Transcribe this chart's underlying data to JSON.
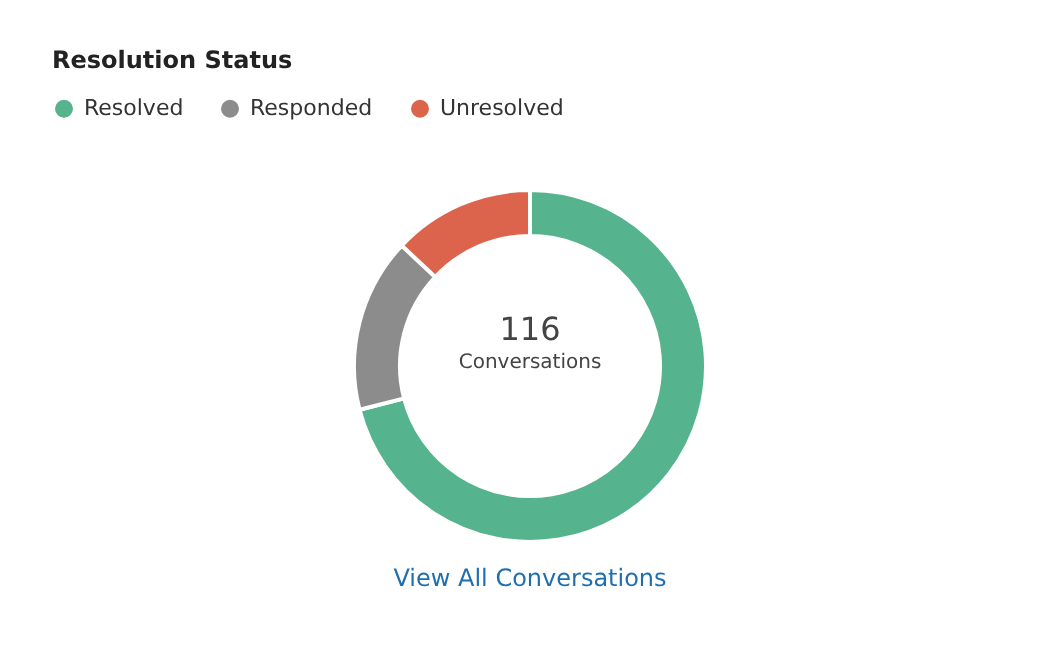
{
  "chart_data": {
    "type": "donut",
    "title": "Resolution Status",
    "categories": [
      "Resolved",
      "Responded",
      "Unresolved"
    ],
    "values": [
      71,
      16,
      13
    ],
    "colors": [
      "#55b38e",
      "#8c8c8c",
      "#dc644c"
    ],
    "legend": "top left",
    "annotations": [
      "116",
      "Conversations",
      "View All Conversations"
    ]
  }
}
